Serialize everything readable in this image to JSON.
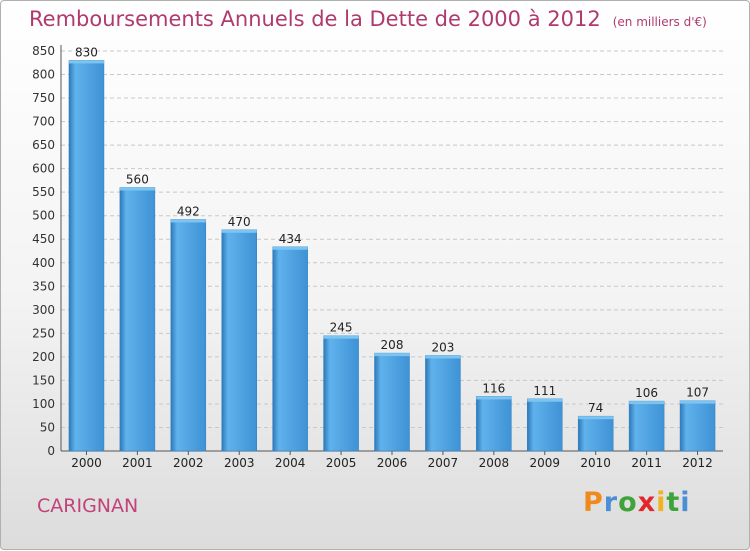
{
  "commune": "CARIGNAN",
  "logo": {
    "letters": [
      "P",
      "r",
      "o",
      "x",
      "i",
      "t",
      "i"
    ],
    "colors": [
      "#f08a1c",
      "#4a8fd6",
      "#3fa33a",
      "#e2262b",
      "#f0b51c",
      "#3fa33a",
      "#4a8fd6"
    ]
  },
  "chart_data": {
    "type": "bar",
    "title": "Remboursements Annuels de la Dette de 2000 à 2012",
    "unit_label": "(en milliers d'€)",
    "categories": [
      "2000",
      "2001",
      "2002",
      "2003",
      "2004",
      "2005",
      "2006",
      "2007",
      "2008",
      "2009",
      "2010",
      "2011",
      "2012"
    ],
    "values": [
      830,
      560,
      492,
      470,
      434,
      245,
      208,
      203,
      116,
      111,
      74,
      106,
      107
    ],
    "ylim": [
      0,
      850
    ],
    "yticks": [
      0,
      50,
      100,
      150,
      200,
      250,
      300,
      350,
      400,
      450,
      500,
      550,
      600,
      650,
      700,
      750,
      800,
      850
    ],
    "grid": true,
    "bar_color": "#4a98d6"
  }
}
